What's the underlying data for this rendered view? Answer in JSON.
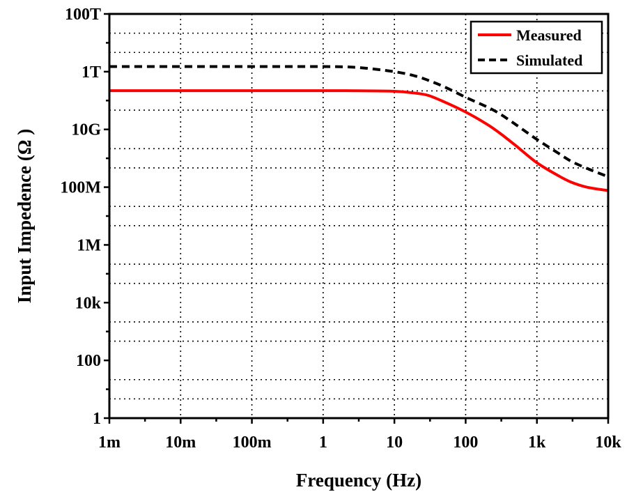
{
  "chart_data": {
    "type": "line",
    "xlabel": "Frequency (Hz)",
    "ylabel": "Input Impedence (Ω )",
    "x_scale": "log",
    "y_scale": "log",
    "xlim": [
      0.001,
      10000
    ],
    "ylim": [
      1,
      100000000000000
    ],
    "x_ticks": [
      {
        "value": 0.001,
        "label": "1m"
      },
      {
        "value": 0.01,
        "label": "10m"
      },
      {
        "value": 0.1,
        "label": "100m"
      },
      {
        "value": 1,
        "label": "1"
      },
      {
        "value": 10,
        "label": "10"
      },
      {
        "value": 100,
        "label": "100"
      },
      {
        "value": 1000,
        "label": "1k"
      },
      {
        "value": 10000,
        "label": "10k"
      }
    ],
    "y_ticks": [
      {
        "value": 1,
        "label": "1"
      },
      {
        "value": 100,
        "label": "100"
      },
      {
        "value": 10000,
        "label": "10k"
      },
      {
        "value": 1000000,
        "label": "1M"
      },
      {
        "value": 100000000,
        "label": "100M"
      },
      {
        "value": 10000000000,
        "label": "10G"
      },
      {
        "value": 1000000000000,
        "label": "1T"
      },
      {
        "value": 100000000000000,
        "label": "100T"
      }
    ],
    "grid": true,
    "legend": "top-right",
    "series": [
      {
        "name": "Measured",
        "color": "#ff0000",
        "style": "solid",
        "x": [
          0.001,
          0.01,
          0.1,
          1,
          3,
          10,
          20,
          30,
          50,
          100,
          200,
          300,
          500,
          1000,
          2000,
          3000,
          5000,
          10000
        ],
        "y": [
          220000000000,
          220000000000,
          220000000000,
          220000000000,
          218000000000,
          210000000000,
          180000000000,
          150000000000,
          90000000000,
          40000000000,
          15000000000,
          7500000000,
          2800000000,
          700000000,
          250000000,
          150000000,
          100000000,
          76000000
        ]
      },
      {
        "name": "Simulated",
        "color": "#000000",
        "style": "dashed",
        "x": [
          0.001,
          0.01,
          0.1,
          1,
          3,
          10,
          20,
          30,
          50,
          100,
          200,
          300,
          500,
          1000,
          2000,
          3000,
          5000,
          10000
        ],
        "y": [
          1500000000000,
          1500000000000,
          1500000000000,
          1500000000000,
          1400000000000,
          1000000000000,
          700000000000,
          500000000000,
          300000000000,
          130000000000,
          60000000000,
          35000000000,
          15000000000,
          4500000000,
          1500000000,
          800000000,
          450000000,
          230000000
        ]
      }
    ]
  }
}
